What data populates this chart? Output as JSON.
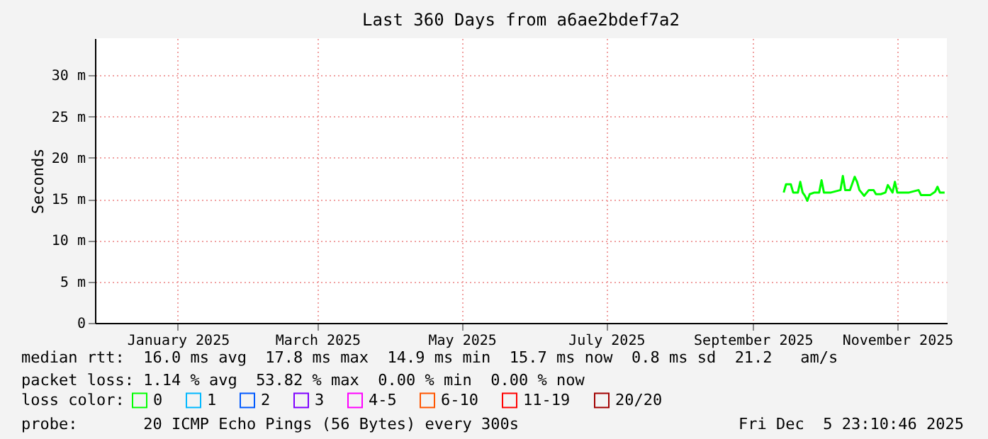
{
  "chart_data": {
    "type": "line",
    "title": "Last 360 Days from a6ae2bdef7a2",
    "ylabel": "Seconds",
    "xlim": [
      "2024-12-10T23:10",
      "2025-12-05T23:10"
    ],
    "xticks": [
      {
        "value": "2025-01-15",
        "label": "January 2025"
      },
      {
        "value": "2025-03-15",
        "label": "March 2025"
      },
      {
        "value": "2025-05-15",
        "label": "May 2025"
      },
      {
        "value": "2025-07-15",
        "label": "July 2025"
      },
      {
        "value": "2025-09-15",
        "label": "September 2025"
      },
      {
        "value": "2025-11-15",
        "label": "November 2025"
      }
    ],
    "ylim": [
      0,
      34.5
    ],
    "yticks": [
      0,
      {
        "value": 5,
        "label": "5 m"
      },
      {
        "value": 10,
        "label": "10 m"
      },
      {
        "value": 15,
        "label": "15 m"
      },
      {
        "value": 20,
        "label": "20 m"
      },
      {
        "value": 25,
        "label": "25 m"
      },
      {
        "value": 30,
        "label": "30 m"
      }
    ],
    "x": [
      "2025-09-28",
      "2025-09-29",
      "2025-10-01",
      "2025-10-02",
      "2025-10-04",
      "2025-10-05",
      "2025-10-06",
      "2025-10-07",
      "2025-10-08",
      "2025-10-09",
      "2025-10-11",
      "2025-10-13",
      "2025-10-14",
      "2025-10-15",
      "2025-10-18",
      "2025-10-22",
      "2025-10-23",
      "2025-10-24",
      "2025-10-26",
      "2025-10-28",
      "2025-10-29",
      "2025-10-30",
      "2025-11-01",
      "2025-11-03",
      "2025-11-05",
      "2025-11-06",
      "2025-11-08",
      "2025-11-10",
      "2025-11-11",
      "2025-11-13",
      "2025-11-14",
      "2025-11-15",
      "2025-11-18",
      "2025-11-20",
      "2025-11-24",
      "2025-11-25",
      "2025-11-29",
      "2025-12-01",
      "2025-12-02",
      "2025-12-03",
      "2025-12-05"
    ],
    "series": [
      {
        "name": "0",
        "color": "#00ff00",
        "values": [
          15.8,
          16.8,
          16.8,
          15.8,
          15.8,
          17.1,
          15.8,
          15.4,
          14.8,
          15.6,
          15.8,
          15.8,
          17.3,
          15.8,
          15.8,
          16.1,
          17.8,
          16.1,
          16.1,
          17.7,
          17.1,
          16.1,
          15.4,
          16.1,
          16.1,
          15.6,
          15.6,
          15.8,
          16.7,
          15.8,
          17.1,
          15.8,
          15.8,
          15.8,
          16.1,
          15.5,
          15.5,
          15.9,
          16.5,
          15.8,
          15.8
        ]
      },
      {
        "name": "1",
        "color": "#00b8ff",
        "values": [
          null,
          null,
          null,
          null,
          null,
          null,
          null,
          null,
          null,
          null,
          null,
          null,
          null,
          null,
          null,
          null,
          null,
          null,
          null,
          null,
          null,
          null,
          null,
          null,
          null,
          null,
          null,
          null,
          null,
          null,
          null,
          null,
          null,
          null,
          null,
          null,
          null,
          null,
          null,
          null,
          null
        ]
      },
      {
        "name": "2",
        "color": "#0059ff",
        "values": [
          null,
          null,
          null,
          null,
          null,
          null,
          null,
          null,
          null,
          null,
          null,
          null,
          null,
          null,
          null,
          null,
          null,
          null,
          null,
          null,
          null,
          null,
          null,
          null,
          null,
          null,
          null,
          null,
          null,
          null,
          null,
          null,
          null,
          null,
          null,
          null,
          null,
          null,
          null,
          null,
          null
        ]
      },
      {
        "name": "3",
        "color": "#7e00ff",
        "values": [
          null,
          null,
          null,
          null,
          null,
          null,
          null,
          null,
          null,
          null,
          null,
          null,
          null,
          null,
          null,
          null,
          null,
          null,
          null,
          null,
          null,
          null,
          null,
          null,
          null,
          null,
          null,
          null,
          null,
          null,
          null,
          null,
          null,
          null,
          null,
          null,
          null,
          null,
          null,
          null,
          null
        ]
      },
      {
        "name": "4-5",
        "color": "#ff00ff",
        "values": [
          null,
          null,
          null,
          null,
          null,
          null,
          null,
          null,
          null,
          null,
          null,
          null,
          null,
          null,
          null,
          null,
          null,
          null,
          null,
          null,
          null,
          null,
          null,
          null,
          null,
          null,
          null,
          null,
          null,
          null,
          null,
          null,
          null,
          null,
          null,
          null,
          null,
          null,
          null,
          null,
          null
        ]
      },
      {
        "name": "6-10",
        "color": "#ff5500",
        "values": [
          null,
          null,
          null,
          null,
          null,
          null,
          null,
          null,
          null,
          null,
          null,
          null,
          null,
          null,
          null,
          null,
          null,
          null,
          null,
          null,
          null,
          null,
          null,
          null,
          null,
          null,
          null,
          null,
          null,
          null,
          null,
          null,
          null,
          null,
          null,
          null,
          null,
          null,
          null,
          null,
          null
        ]
      },
      {
        "name": "11-19",
        "color": "#ff0000",
        "values": [
          null,
          null,
          null,
          null,
          null,
          null,
          null,
          null,
          null,
          null,
          null,
          null,
          null,
          null,
          null,
          null,
          null,
          null,
          null,
          null,
          null,
          null,
          null,
          null,
          null,
          null,
          null,
          null,
          null,
          null,
          null,
          null,
          null,
          null,
          null,
          null,
          null,
          null,
          null,
          null,
          null
        ]
      },
      {
        "name": "20/20",
        "color": "#a10000",
        "values": [
          null,
          null,
          null,
          null,
          null,
          null,
          null,
          null,
          null,
          null,
          null,
          null,
          null,
          null,
          null,
          null,
          null,
          null,
          null,
          null,
          null,
          null,
          null,
          null,
          null,
          null,
          null,
          null,
          null,
          null,
          null,
          null,
          null,
          null,
          null,
          null,
          null,
          null,
          null,
          null,
          null
        ]
      }
    ],
    "legend_title": "loss color:",
    "legend": "bottom left",
    "grid": true,
    "line_style": "solid",
    "annotations": [
      "median rtt:  16.0 ms avg  17.8 ms max  14.9 ms min  15.7 ms now  0.8 ms sd  21.2   am/s",
      "packet loss: 1.14 % avg  53.82 % max  0.00 % min  0.00 % now",
      "probe:       20 ICMP Echo Pings (56 Bytes) every 300s",
      "Fri Dec  5 23:10:46 2025"
    ]
  }
}
